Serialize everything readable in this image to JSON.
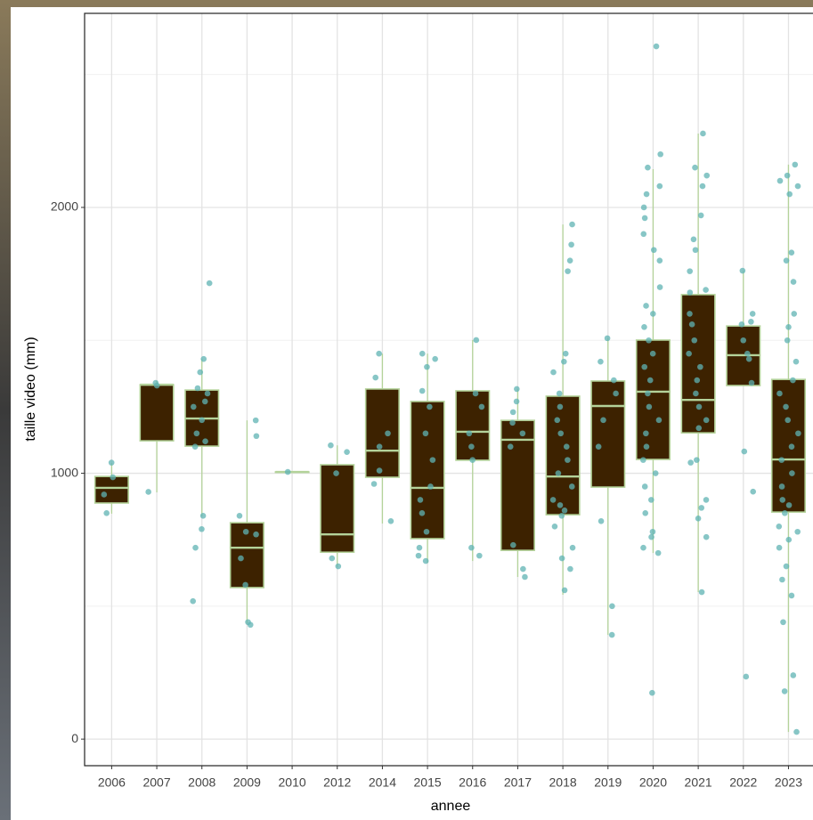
{
  "chart_data": {
    "type": "boxplot",
    "x_label": "annee",
    "y_label": "taille video (mm)",
    "categories": [
      "2006",
      "2007",
      "2008",
      "2009",
      "2010",
      "2012",
      "2014",
      "2015",
      "2016",
      "2017",
      "2018",
      "2019",
      "2020",
      "2021",
      "2022",
      "2023"
    ],
    "ylim": [
      -100,
      2730
    ],
    "yticks": [
      0,
      1000,
      2000
    ],
    "minor_yticks": [
      500,
      1500,
      2500
    ],
    "grid": true,
    "box_color": "#3d2200",
    "line_color": "#b4d39a",
    "point_color": "#5fb3b3",
    "boxes": [
      {
        "whisker_low": 848,
        "q1": 888,
        "median": 945,
        "q3": 988,
        "whisker_high": 1038,
        "points": [
          1040,
          985,
          920,
          850
        ]
      },
      {
        "whisker_low": 928,
        "q1": 1122,
        "median": 1333,
        "q3": 1333,
        "whisker_high": 1347,
        "points": [
          1340,
          1330,
          930
        ]
      },
      {
        "whisker_low": 838,
        "q1": 1102,
        "median": 1206,
        "q3": 1313,
        "whisker_high": 1430,
        "points": [
          1715,
          1430,
          1380,
          1320,
          1300,
          1270,
          1250,
          1200,
          1150,
          1120,
          1100,
          840,
          790,
          720,
          519
        ]
      },
      {
        "whisker_low": 435,
        "q1": 570,
        "median": 720,
        "q3": 814,
        "whisker_high": 1199,
        "points": [
          1199,
          1140,
          840,
          780,
          770,
          680,
          580,
          440,
          430
        ]
      },
      {
        "whisker_low": 1005,
        "q1": 1005,
        "median": 1005,
        "q3": 1005,
        "whisker_high": 1005,
        "points": [
          1005
        ]
      },
      {
        "whisker_low": 647,
        "q1": 703,
        "median": 770,
        "q3": 1032,
        "whisker_high": 1105,
        "points": [
          1105,
          1080,
          1000,
          680,
          650
        ]
      },
      {
        "whisker_low": 811,
        "q1": 985,
        "median": 1085,
        "q3": 1317,
        "whisker_high": 1450,
        "points": [
          1450,
          1360,
          1150,
          1100,
          1010,
          960,
          820
        ]
      },
      {
        "whisker_low": 663,
        "q1": 754,
        "median": 945,
        "q3": 1270,
        "whisker_high": 1450,
        "points": [
          1450,
          1430,
          1400,
          1310,
          1250,
          1150,
          1050,
          950,
          900,
          850,
          780,
          720,
          690,
          670
        ]
      },
      {
        "whisker_low": 670,
        "q1": 1049,
        "median": 1156,
        "q3": 1310,
        "whisker_high": 1501,
        "points": [
          1501,
          1300,
          1250,
          1150,
          1100,
          1050,
          720,
          690
        ]
      },
      {
        "whisker_low": 610,
        "q1": 710,
        "median": 1126,
        "q3": 1199,
        "whisker_high": 1317,
        "points": [
          1317,
          1270,
          1230,
          1190,
          1150,
          1100,
          730,
          640,
          610
        ]
      },
      {
        "whisker_low": 543,
        "q1": 844,
        "median": 988,
        "q3": 1290,
        "whisker_high": 1936,
        "points": [
          1936,
          1860,
          1800,
          1760,
          1450,
          1420,
          1380,
          1300,
          1250,
          1200,
          1150,
          1100,
          1050,
          1000,
          950,
          900,
          880,
          860,
          840,
          800,
          720,
          680,
          640,
          560
        ]
      },
      {
        "whisker_low": 392,
        "q1": 948,
        "median": 1253,
        "q3": 1347,
        "whisker_high": 1508,
        "points": [
          1508,
          1420,
          1350,
          1300,
          1200,
          1100,
          820,
          500,
          392
        ]
      },
      {
        "whisker_low": 700,
        "q1": 1052,
        "median": 1307,
        "q3": 1501,
        "whisker_high": 2144,
        "points": [
          2606,
          2200,
          2150,
          2080,
          2050,
          2000,
          1960,
          1900,
          1840,
          1800,
          1700,
          1630,
          1600,
          1550,
          1500,
          1450,
          1400,
          1350,
          1300,
          1250,
          1200,
          1150,
          1100,
          1050,
          1000,
          950,
          900,
          850,
          780,
          760,
          720,
          700,
          174
        ]
      },
      {
        "whisker_low": 553,
        "q1": 1152,
        "median": 1276,
        "q3": 1672,
        "whisker_high": 2278,
        "points": [
          2278,
          2150,
          2120,
          2080,
          1970,
          1880,
          1840,
          1760,
          1690,
          1680,
          1600,
          1560,
          1500,
          1450,
          1400,
          1350,
          1300,
          1250,
          1200,
          1170,
          1050,
          1040,
          900,
          870,
          830,
          760,
          553
        ]
      },
      {
        "whisker_low": 1330,
        "q1": 1330,
        "median": 1444,
        "q3": 1554,
        "whisker_high": 1762,
        "points": [
          1762,
          1600,
          1570,
          1560,
          1500,
          1450,
          1430,
          1340,
          1082,
          931,
          235
        ]
      },
      {
        "whisker_low": 27,
        "q1": 854,
        "median": 1052,
        "q3": 1353,
        "whisker_high": 2161,
        "points": [
          2161,
          2120,
          2100,
          2080,
          2050,
          1830,
          1800,
          1720,
          1600,
          1550,
          1500,
          1420,
          1350,
          1300,
          1250,
          1200,
          1150,
          1100,
          1050,
          1000,
          950,
          900,
          880,
          850,
          800,
          780,
          750,
          720,
          650,
          600,
          540,
          440,
          240,
          180,
          27
        ]
      }
    ]
  }
}
